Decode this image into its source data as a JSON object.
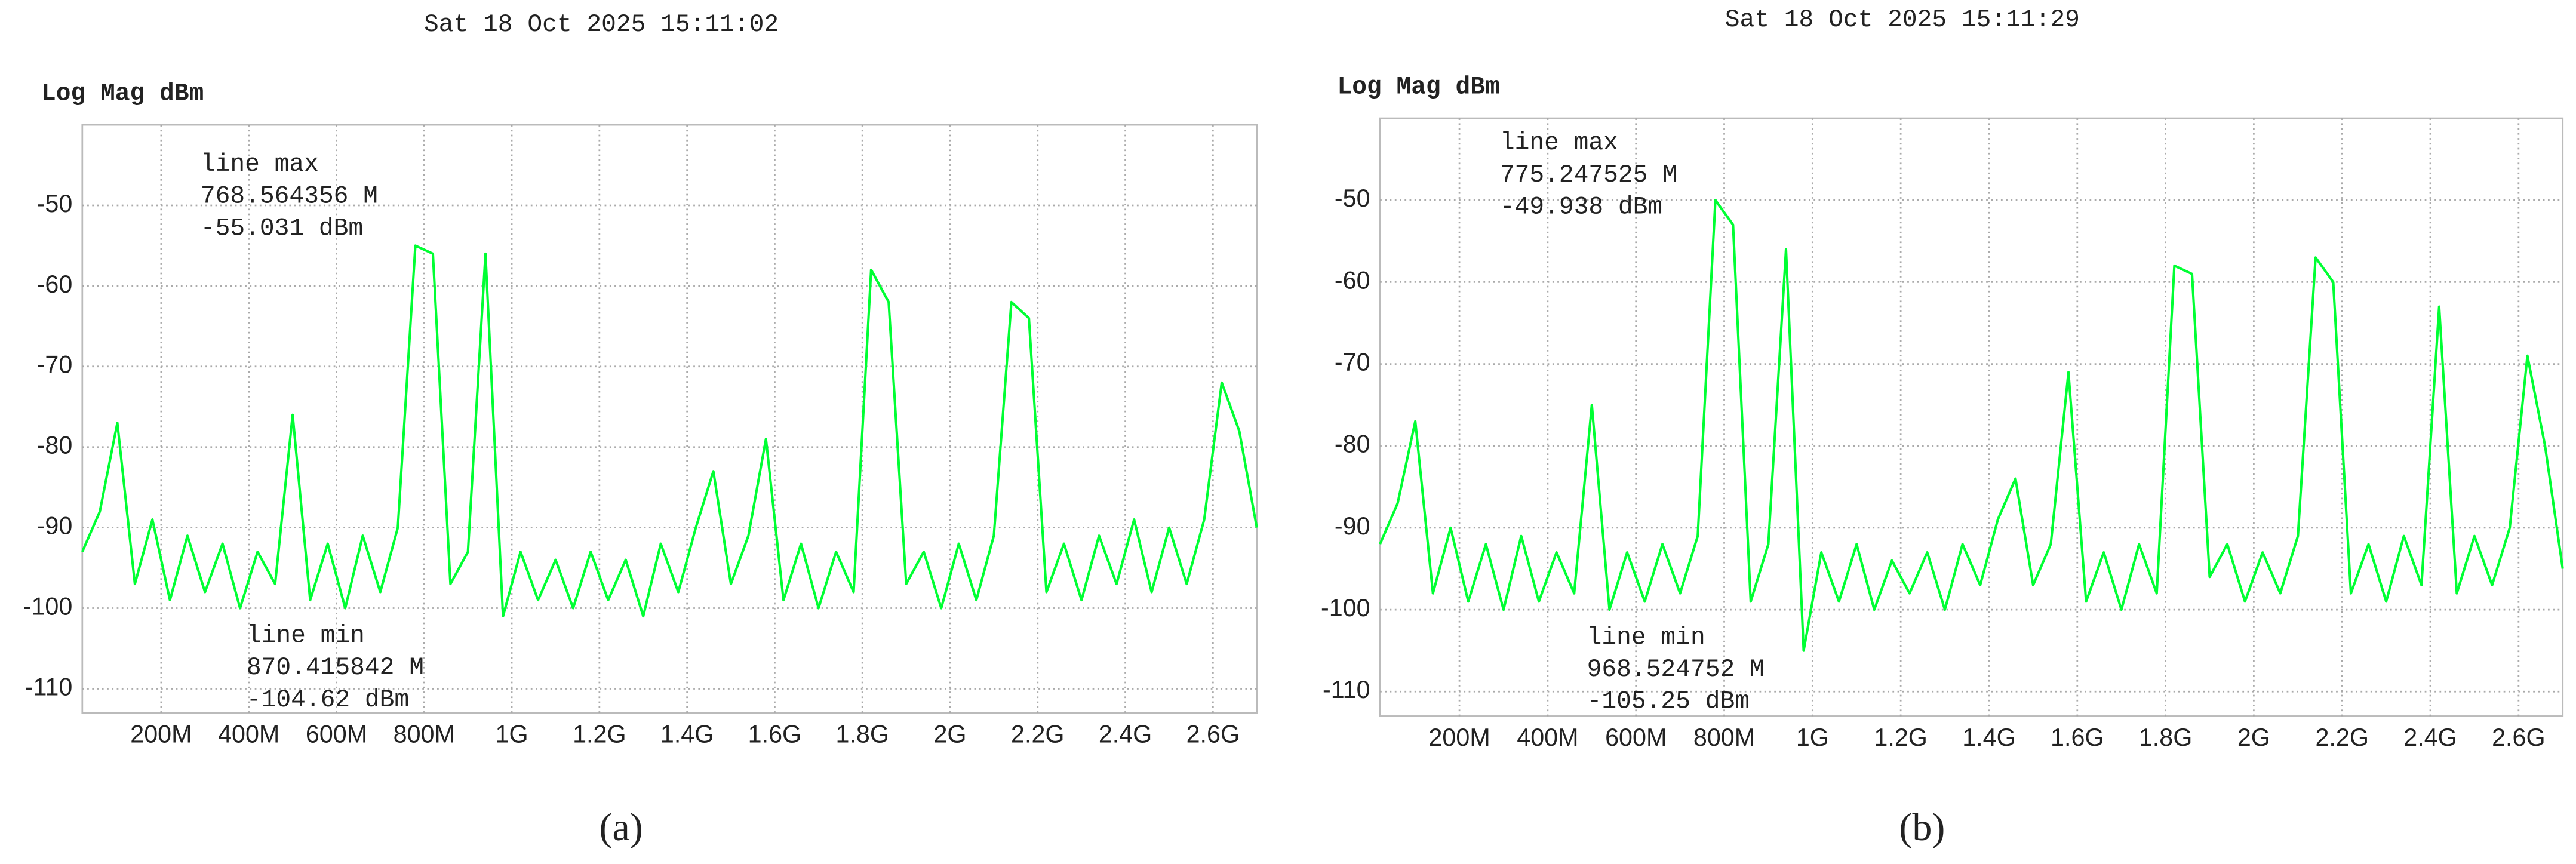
{
  "chart_data": [
    {
      "type": "line",
      "title": "Sat 18 Oct 2025 15:11:02",
      "ylabel": "Log Mag dBm",
      "caption": "(a)",
      "xlim": [
        20,
        2700
      ],
      "ylim": [
        -113,
        -40
      ],
      "grid": true,
      "xticks": [
        {
          "value": 200,
          "label": "200M"
        },
        {
          "value": 400,
          "label": "400M"
        },
        {
          "value": 600,
          "label": "600M"
        },
        {
          "value": 800,
          "label": "800M"
        },
        {
          "value": 1000,
          "label": "1G"
        },
        {
          "value": 1200,
          "label": "1.2G"
        },
        {
          "value": 1400,
          "label": "1.4G"
        },
        {
          "value": 1600,
          "label": "1.6G"
        },
        {
          "value": 1800,
          "label": "1.8G"
        },
        {
          "value": 2000,
          "label": "2G"
        },
        {
          "value": 2200,
          "label": "2.2G"
        },
        {
          "value": 2400,
          "label": "2.4G"
        },
        {
          "value": 2600,
          "label": "2.6G"
        }
      ],
      "yticks": [
        -110,
        -100,
        -90,
        -80,
        -70,
        -60,
        -50
      ],
      "annotations": [
        [
          "line max",
          "768.564356 M",
          "-55.031 dBm"
        ],
        [
          "line min",
          "870.415842 M",
          "-104.62 dBm"
        ]
      ],
      "x": [
        20,
        60,
        100,
        140,
        180,
        220,
        260,
        300,
        340,
        380,
        420,
        460,
        500,
        540,
        580,
        620,
        660,
        700,
        740,
        780,
        820,
        860,
        900,
        940,
        980,
        1020,
        1060,
        1100,
        1140,
        1180,
        1220,
        1260,
        1300,
        1340,
        1380,
        1420,
        1460,
        1500,
        1540,
        1580,
        1620,
        1660,
        1700,
        1740,
        1780,
        1820,
        1860,
        1900,
        1940,
        1980,
        2020,
        2060,
        2100,
        2140,
        2180,
        2220,
        2260,
        2300,
        2340,
        2380,
        2420,
        2460,
        2500,
        2540,
        2580,
        2620,
        2660,
        2700
      ],
      "series": [
        {
          "color": "#00ff33",
          "values": [
            -93,
            -88,
            -77,
            -97,
            -89,
            -99,
            -91,
            -98,
            -92,
            -100,
            -93,
            -97,
            -76,
            -99,
            -92,
            -100,
            -91,
            -98,
            -90,
            -55,
            -56,
            -97,
            -93,
            -56,
            -101,
            -93,
            -99,
            -94,
            -100,
            -93,
            -99,
            -94,
            -101,
            -92,
            -98,
            -90,
            -83,
            -97,
            -91,
            -79,
            -99,
            -92,
            -100,
            -93,
            -98,
            -58,
            -62,
            -97,
            -93,
            -100,
            -92,
            -99,
            -91,
            -62,
            -64,
            -98,
            -92,
            -99,
            -91,
            -97,
            -89,
            -98,
            -90,
            -97,
            -89,
            -72,
            -78,
            -90
          ]
        }
      ]
    },
    {
      "type": "line",
      "title": "Sat 18 Oct 2025 15:11:29",
      "ylabel": "Log Mag dBm",
      "caption": "(b)",
      "xlim": [
        20,
        2700
      ],
      "ylim": [
        -113,
        -40
      ],
      "grid": true,
      "xticks": [
        {
          "value": 200,
          "label": "200M"
        },
        {
          "value": 400,
          "label": "400M"
        },
        {
          "value": 600,
          "label": "600M"
        },
        {
          "value": 800,
          "label": "800M"
        },
        {
          "value": 1000,
          "label": "1G"
        },
        {
          "value": 1200,
          "label": "1.2G"
        },
        {
          "value": 1400,
          "label": "1.4G"
        },
        {
          "value": 1600,
          "label": "1.6G"
        },
        {
          "value": 1800,
          "label": "1.8G"
        },
        {
          "value": 2000,
          "label": "2G"
        },
        {
          "value": 2200,
          "label": "2.2G"
        },
        {
          "value": 2400,
          "label": "2.4G"
        },
        {
          "value": 2600,
          "label": "2.6G"
        }
      ],
      "yticks": [
        -110,
        -100,
        -90,
        -80,
        -70,
        -60,
        -50
      ],
      "annotations": [
        [
          "line max",
          "775.247525 M",
          "-49.938 dBm"
        ],
        [
          "line min",
          "968.524752 M",
          "-105.25 dBm"
        ]
      ],
      "x": [
        20,
        60,
        100,
        140,
        180,
        220,
        260,
        300,
        340,
        380,
        420,
        460,
        500,
        540,
        580,
        620,
        660,
        700,
        740,
        780,
        820,
        860,
        900,
        940,
        980,
        1020,
        1060,
        1100,
        1140,
        1180,
        1220,
        1260,
        1300,
        1340,
        1380,
        1420,
        1460,
        1500,
        1540,
        1580,
        1620,
        1660,
        1700,
        1740,
        1780,
        1820,
        1860,
        1900,
        1940,
        1980,
        2020,
        2060,
        2100,
        2140,
        2180,
        2220,
        2260,
        2300,
        2340,
        2380,
        2420,
        2460,
        2500,
        2540,
        2580,
        2620,
        2660,
        2700
      ],
      "series": [
        {
          "color": "#00ff33",
          "values": [
            -92,
            -87,
            -77,
            -98,
            -90,
            -99,
            -92,
            -100,
            -91,
            -99,
            -93,
            -98,
            -75,
            -100,
            -93,
            -99,
            -92,
            -98,
            -91,
            -50,
            -53,
            -99,
            -92,
            -56,
            -105,
            -93,
            -99,
            -92,
            -100,
            -94,
            -98,
            -93,
            -100,
            -92,
            -97,
            -89,
            -84,
            -97,
            -92,
            -71,
            -99,
            -93,
            -100,
            -92,
            -98,
            -58,
            -59,
            -96,
            -92,
            -99,
            -93,
            -98,
            -91,
            -57,
            -60,
            -98,
            -92,
            -99,
            -91,
            -97,
            -63,
            -98,
            -91,
            -97,
            -90,
            -69,
            -80,
            -95
          ]
        }
      ]
    }
  ]
}
